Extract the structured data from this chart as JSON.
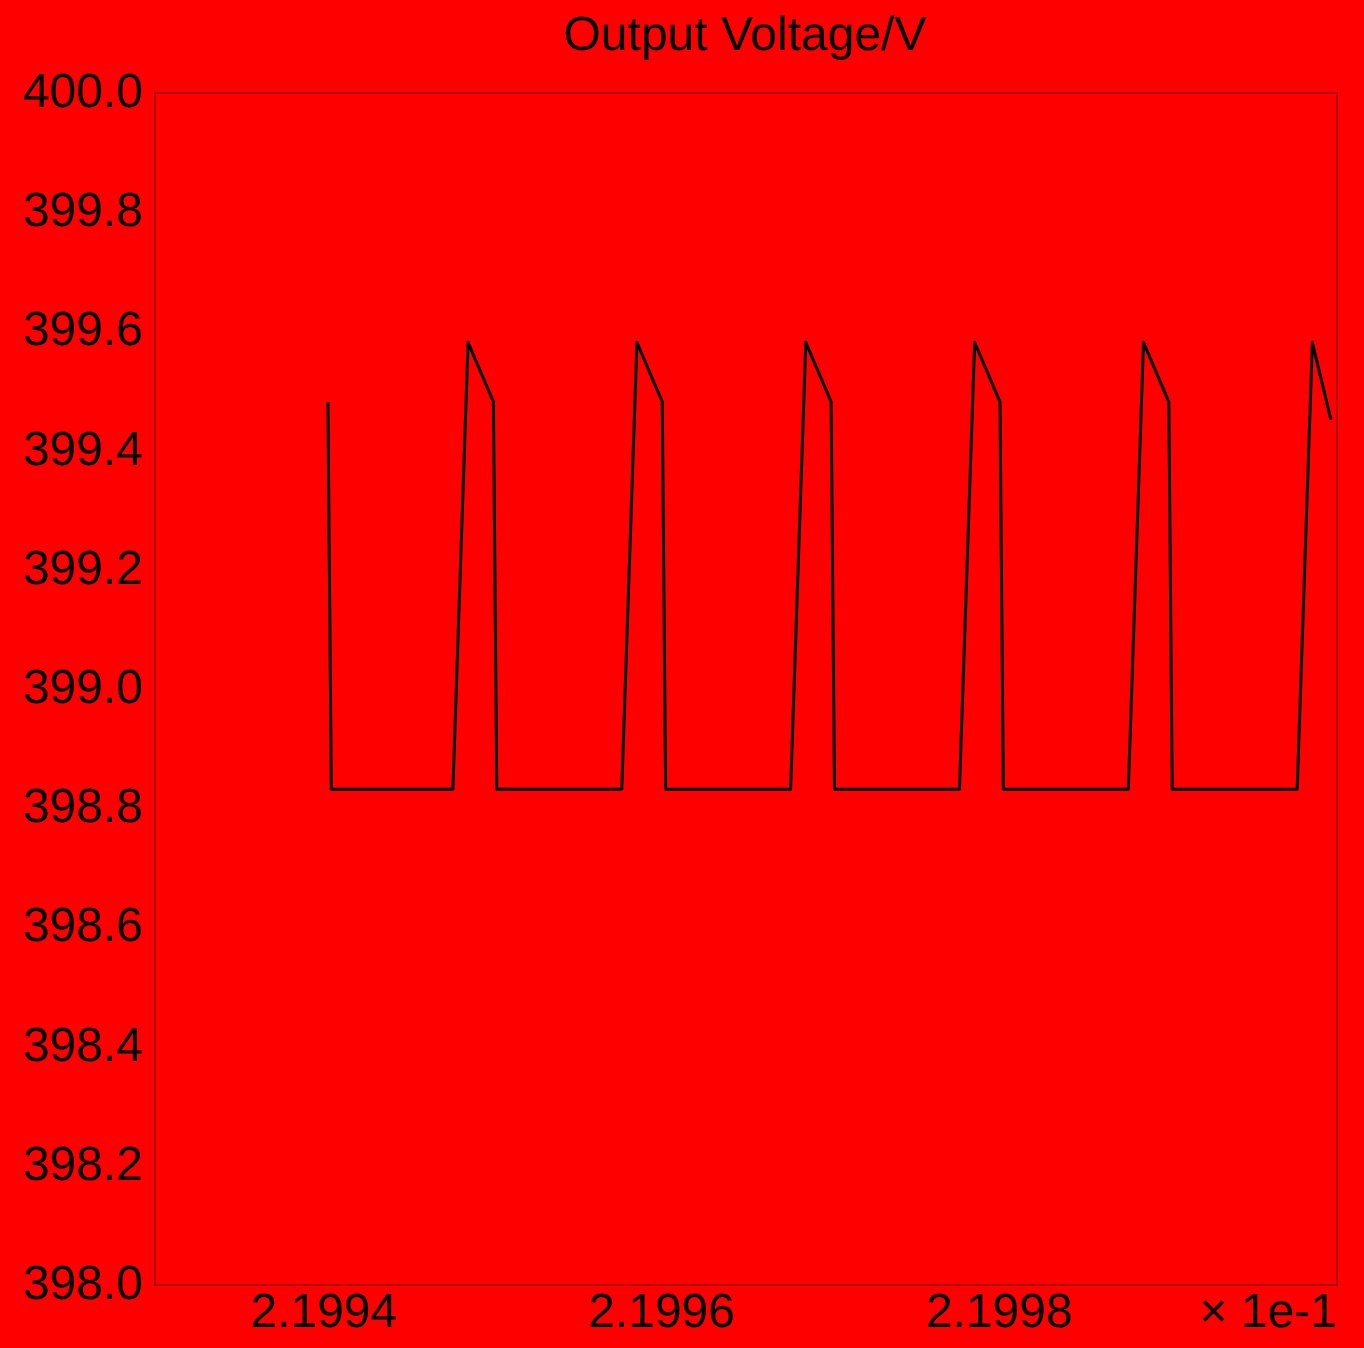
{
  "chart_data": {
    "type": "line",
    "title": "Output Voltage/V",
    "xlabel": "× 1e-1",
    "xlim": [
      2.1993,
      2.2
    ],
    "xticks": [
      2.1994,
      2.1996,
      2.1998
    ],
    "ylim": [
      398.0,
      400.0
    ],
    "yticks": [
      {
        "value": 398.0,
        "label": "398.0"
      },
      {
        "value": 398.2,
        "label": "398.2"
      },
      {
        "value": 398.4,
        "label": "398.4"
      },
      {
        "value": 398.6,
        "label": "398.6"
      },
      {
        "value": 398.8,
        "label": "398.8"
      },
      {
        "value": 399.0,
        "label": "399.0"
      },
      {
        "value": 399.2,
        "label": "399.2"
      },
      {
        "value": 399.4,
        "label": "399.4"
      },
      {
        "value": 399.6,
        "label": "399.6"
      },
      {
        "value": 399.8,
        "label": "399.8"
      },
      {
        "value": 400.0,
        "label": "400.0"
      }
    ],
    "grid": false,
    "x": [
      2.199403,
      2.199405,
      2.199477,
      2.199486,
      2.199501,
      2.199503,
      2.199577,
      2.199586,
      2.199601,
      2.199603,
      2.199677,
      2.199686,
      2.199701,
      2.199703,
      2.199777,
      2.199786,
      2.199801,
      2.199803,
      2.199877,
      2.199886,
      2.199901,
      2.199903,
      2.199977,
      2.199986,
      2.199997
    ],
    "series": [
      {
        "color": "#000000",
        "values": [
          399.48,
          398.83,
          398.83,
          399.58,
          399.48,
          398.83,
          398.83,
          399.58,
          399.48,
          398.83,
          398.83,
          399.58,
          399.48,
          398.83,
          398.83,
          399.58,
          399.48,
          398.83,
          398.83,
          399.58,
          399.48,
          398.83,
          398.83,
          399.58,
          399.45
        ]
      }
    ]
  }
}
